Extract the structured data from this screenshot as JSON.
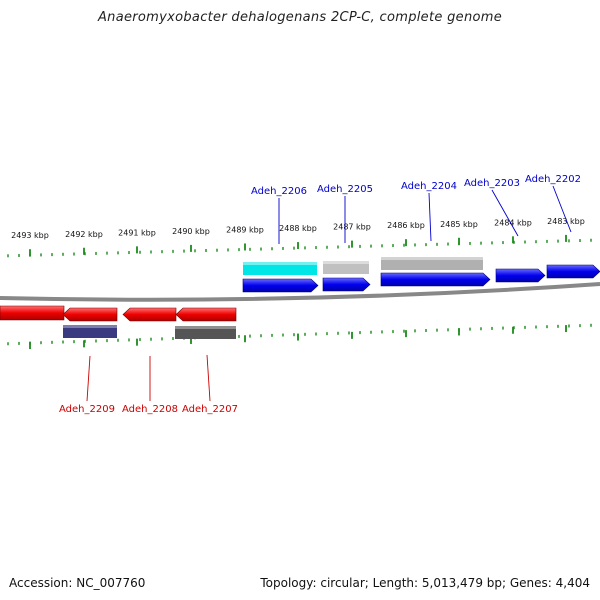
{
  "title": "Anaeromyxobacter dehalogenans 2CP-C, complete genome",
  "footer": {
    "accession": "Accession: NC_007760",
    "summary": "Topology: circular; Length: 5,013,479 bp; Genes: 4,404"
  },
  "colors": {
    "forward_gene": "#0000ee",
    "reverse_gene": "#ee0000",
    "tick": "#1a8a1a",
    "backbone": "#888888",
    "forward_label": "#0000cc",
    "reverse_label": "#cc0000"
  },
  "scale_ticks": [
    {
      "label": "2493 kbp"
    },
    {
      "label": "2492 kbp"
    },
    {
      "label": "2491 kbp"
    },
    {
      "label": "2490 kbp"
    },
    {
      "label": "2489 kbp"
    },
    {
      "label": "2488 kbp"
    },
    {
      "label": "2487 kbp"
    },
    {
      "label": "2486 kbp"
    },
    {
      "label": "2485 kbp"
    },
    {
      "label": "2484 kbp"
    },
    {
      "label": "2483 kbp"
    }
  ],
  "forward_genes": [
    {
      "label": "Adeh_2206",
      "track_color": "#00e5e5"
    },
    {
      "label": "Adeh_2205",
      "track_color": "#c0c0c0"
    },
    {
      "label": "Adeh_2204",
      "track_color": "#b0b0b0"
    },
    {
      "label": "Adeh_2203",
      "track_color": ""
    },
    {
      "label": "Adeh_2202",
      "track_color": ""
    }
  ],
  "reverse_genes": [
    {
      "label": "Adeh_2209",
      "track_color": "#3a3a80"
    },
    {
      "label": "Adeh_2208",
      "track_color": ""
    },
    {
      "label": "Adeh_2207",
      "track_color": "#555555"
    }
  ]
}
